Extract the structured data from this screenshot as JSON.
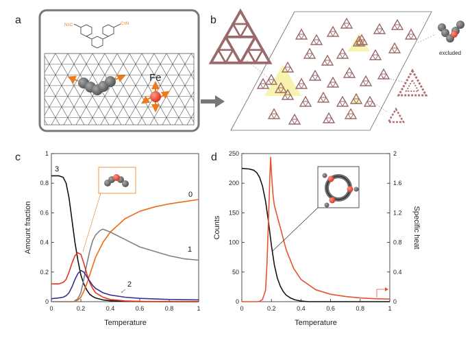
{
  "panel_labels": {
    "a": "a",
    "b": "b",
    "c": "c",
    "d": "d"
  },
  "panel_a": {
    "atom_label": "Fe"
  },
  "panel_b": {
    "excluded_label": "excluded"
  },
  "chart_data": [
    {
      "id": "c",
      "type": "line",
      "xlabel": "Temperature",
      "ylabel": "Amount fraction",
      "xlim": [
        0,
        1
      ],
      "ylim": [
        0,
        1
      ],
      "xticks": [
        "0",
        "0.2",
        "0.4",
        "0.6",
        "0.8",
        "1"
      ],
      "yticks": [
        "0",
        "0.2",
        "0.4",
        "0.6",
        "0.8",
        "1"
      ],
      "series": [
        {
          "name": "3",
          "color": "#111111",
          "x": [
            0,
            0.05,
            0.08,
            0.1,
            0.12,
            0.14,
            0.16,
            0.18,
            0.2,
            0.22,
            0.24,
            0.26,
            0.28,
            0.3,
            0.35,
            0.4,
            0.5,
            0.6,
            1.0
          ],
          "y": [
            0.85,
            0.85,
            0.84,
            0.8,
            0.7,
            0.55,
            0.4,
            0.28,
            0.18,
            0.12,
            0.08,
            0.05,
            0.035,
            0.025,
            0.012,
            0.006,
            0.002,
            0.001,
            0.0
          ]
        },
        {
          "name": "0",
          "color": "#ee6a0e",
          "x": [
            0,
            0.15,
            0.18,
            0.2,
            0.22,
            0.24,
            0.26,
            0.28,
            0.3,
            0.35,
            0.4,
            0.5,
            0.6,
            0.7,
            0.8,
            0.9,
            1.0
          ],
          "y": [
            0,
            0,
            0.01,
            0.03,
            0.07,
            0.12,
            0.18,
            0.24,
            0.3,
            0.4,
            0.47,
            0.56,
            0.61,
            0.64,
            0.66,
            0.675,
            0.69
          ]
        },
        {
          "name": "1",
          "color": "#808080",
          "x": [
            0,
            0.15,
            0.18,
            0.2,
            0.22,
            0.24,
            0.26,
            0.28,
            0.3,
            0.33,
            0.35,
            0.4,
            0.5,
            0.6,
            0.7,
            0.8,
            0.9,
            1.0
          ],
          "y": [
            0,
            0,
            0.02,
            0.06,
            0.15,
            0.25,
            0.34,
            0.41,
            0.45,
            0.48,
            0.49,
            0.47,
            0.42,
            0.37,
            0.34,
            0.31,
            0.29,
            0.28
          ]
        },
        {
          "name": "",
          "color": "#e8331c",
          "x": [
            0,
            0.05,
            0.08,
            0.1,
            0.12,
            0.14,
            0.16,
            0.18,
            0.2,
            0.22,
            0.24,
            0.26,
            0.28,
            0.3,
            0.35,
            0.4,
            0.5,
            0.6,
            1.0
          ],
          "y": [
            0.12,
            0.12,
            0.13,
            0.15,
            0.2,
            0.26,
            0.31,
            0.33,
            0.32,
            0.26,
            0.19,
            0.13,
            0.09,
            0.06,
            0.03,
            0.015,
            0.005,
            0.002,
            0.0
          ]
        },
        {
          "name": "2",
          "color": "#3b2e8e",
          "x": [
            0,
            0.05,
            0.08,
            0.1,
            0.12,
            0.14,
            0.16,
            0.18,
            0.2,
            0.22,
            0.24,
            0.26,
            0.28,
            0.3,
            0.35,
            0.4,
            0.5,
            0.6,
            0.8,
            1.0
          ],
          "y": [
            0.02,
            0.025,
            0.03,
            0.04,
            0.06,
            0.1,
            0.15,
            0.19,
            0.21,
            0.2,
            0.17,
            0.14,
            0.11,
            0.09,
            0.06,
            0.045,
            0.03,
            0.022,
            0.015,
            0.012
          ]
        }
      ]
    },
    {
      "id": "d",
      "type": "line",
      "xlabel": "Temperature",
      "ylabel": "Counts",
      "ylabel_right": "Specific heat",
      "xlim": [
        0,
        1
      ],
      "ylim": [
        0,
        250
      ],
      "ylim_right": [
        0,
        2
      ],
      "xticks": [
        "0",
        "0.2",
        "0.4",
        "0.6",
        "0.8",
        "1"
      ],
      "yticks": [
        "0",
        "50",
        "100",
        "150",
        "200",
        "250"
      ],
      "yticks_right": [
        "0",
        "0.4",
        "0.8",
        "1.2",
        "1.6",
        "2"
      ],
      "series": [
        {
          "name": "Counts",
          "axis": "left",
          "color": "#111111",
          "x": [
            0,
            0.05,
            0.08,
            0.1,
            0.12,
            0.14,
            0.16,
            0.18,
            0.2,
            0.22,
            0.24,
            0.26,
            0.28,
            0.3,
            0.33,
            0.36,
            0.4,
            0.45,
            1.0
          ],
          "y": [
            225,
            224,
            222,
            218,
            210,
            195,
            170,
            135,
            95,
            62,
            40,
            26,
            17,
            11,
            6,
            3,
            1,
            0,
            0
          ]
        },
        {
          "name": "Specific heat",
          "axis": "right",
          "color": "#e8502e",
          "x": [
            0,
            0.1,
            0.12,
            0.14,
            0.16,
            0.17,
            0.18,
            0.19,
            0.195,
            0.2,
            0.21,
            0.22,
            0.24,
            0.26,
            0.28,
            0.3,
            0.35,
            0.4,
            0.5,
            0.6,
            0.7,
            0.8,
            0.9,
            1.0
          ],
          "y": [
            0,
            0,
            0.005,
            0.03,
            0.15,
            0.5,
            1.1,
            1.7,
            1.95,
            1.75,
            1.45,
            1.3,
            1.15,
            1.0,
            0.85,
            0.7,
            0.45,
            0.3,
            0.16,
            0.1,
            0.07,
            0.05,
            0.04,
            0.035
          ]
        }
      ]
    }
  ]
}
